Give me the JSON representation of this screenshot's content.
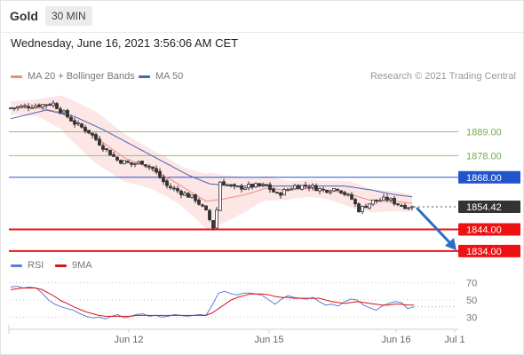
{
  "header": {
    "symbol": "Gold",
    "timeframe": "30 MIN",
    "datetime": "Wednesday, June 16, 2021 3:56:06 AM CET"
  },
  "legend": {
    "ma20_label": "MA 20 + Bollinger Bands",
    "ma50_label": "MA 50",
    "credit": "Research © 2021 Trading Central",
    "rsi_label": "RSI",
    "rsi_ma_label": "9MA"
  },
  "colors": {
    "ma20": "#f08a80",
    "ma50": "#4a64b4",
    "bands": "#fde3e3",
    "resistance": "#2255cc",
    "support": "#ee1111",
    "target": "#8fc46a",
    "rsi": "#5b7fd6",
    "rsi_ma": "#d91515",
    "arrow": "#2a6fc0",
    "up_candle": "#ffffff",
    "down_candle": "#333333"
  },
  "chart_data": [
    {
      "type": "candlestick",
      "title": "Gold",
      "subtitle": "30 MIN",
      "xlabel": "",
      "ylabel": "",
      "ylim": [
        1827,
        1917
      ],
      "x_ticks": [
        "Jun 12",
        "Jun 15",
        "Jun 16",
        "Jul 1"
      ],
      "levels": [
        {
          "label": "1889.00",
          "value": 1889.0,
          "kind": "target"
        },
        {
          "label": "1878.00",
          "value": 1878.0,
          "kind": "target"
        },
        {
          "label": "1868.00",
          "value": 1868.0,
          "kind": "resistance"
        },
        {
          "label": "1854.42",
          "value": 1854.42,
          "kind": "last"
        },
        {
          "label": "1844.00",
          "value": 1844.0,
          "kind": "support"
        },
        {
          "label": "1834.00",
          "value": 1834.0,
          "kind": "support"
        }
      ],
      "forecast_arrow": {
        "from": 1854.42,
        "to": 1836.0
      },
      "price_anchors": [
        [
          0,
          1900
        ],
        [
          6,
          1901
        ],
        [
          12,
          1902
        ],
        [
          14,
          1899
        ],
        [
          18,
          1893
        ],
        [
          22,
          1889
        ],
        [
          26,
          1882
        ],
        [
          30,
          1876
        ],
        [
          34,
          1874
        ],
        [
          37,
          1875
        ],
        [
          40,
          1872
        ],
        [
          44,
          1864
        ],
        [
          48,
          1861
        ],
        [
          52,
          1858
        ],
        [
          55,
          1852
        ],
        [
          57,
          1845
        ],
        [
          58,
          1853
        ],
        [
          59,
          1866
        ],
        [
          63,
          1863
        ],
        [
          68,
          1864
        ],
        [
          72,
          1864
        ],
        [
          75,
          1860
        ],
        [
          80,
          1864
        ],
        [
          84,
          1864
        ],
        [
          88,
          1862
        ],
        [
          92,
          1863
        ],
        [
          96,
          1858
        ],
        [
          98,
          1853
        ],
        [
          102,
          1857
        ],
        [
          106,
          1858
        ],
        [
          110,
          1855
        ],
        [
          113,
          1854.42
        ]
      ],
      "ma20_anchors": [
        [
          0,
          1900
        ],
        [
          8,
          1900
        ],
        [
          14,
          1898
        ],
        [
          20,
          1891
        ],
        [
          26,
          1884
        ],
        [
          32,
          1877
        ],
        [
          38,
          1873
        ],
        [
          44,
          1868
        ],
        [
          50,
          1862
        ],
        [
          55,
          1857
        ],
        [
          60,
          1858
        ],
        [
          66,
          1860
        ],
        [
          72,
          1863
        ],
        [
          78,
          1862
        ],
        [
          84,
          1863
        ],
        [
          90,
          1862
        ],
        [
          96,
          1860
        ],
        [
          102,
          1857
        ],
        [
          108,
          1857
        ],
        [
          113,
          1856
        ]
      ],
      "ma50_anchors": [
        [
          0,
          1895
        ],
        [
          10,
          1899
        ],
        [
          18,
          1896
        ],
        [
          26,
          1890
        ],
        [
          34,
          1883
        ],
        [
          42,
          1876
        ],
        [
          50,
          1869
        ],
        [
          56,
          1865
        ],
        [
          62,
          1864
        ],
        [
          70,
          1864
        ],
        [
          78,
          1864
        ],
        [
          86,
          1864
        ],
        [
          94,
          1864
        ],
        [
          102,
          1862
        ],
        [
          108,
          1860
        ],
        [
          113,
          1859
        ]
      ],
      "band_halfwidth_anchors": [
        [
          0,
          3
        ],
        [
          8,
          4
        ],
        [
          16,
          9
        ],
        [
          24,
          12
        ],
        [
          32,
          11
        ],
        [
          40,
          9
        ],
        [
          48,
          9
        ],
        [
          56,
          13
        ],
        [
          62,
          10
        ],
        [
          70,
          6
        ],
        [
          80,
          4
        ],
        [
          88,
          4
        ],
        [
          96,
          6
        ],
        [
          104,
          5
        ],
        [
          113,
          4
        ]
      ]
    },
    {
      "type": "line",
      "title": "RSI",
      "ylim": [
        20,
        80
      ],
      "y_ticks": [
        30,
        50,
        70
      ],
      "series": [
        {
          "name": "RSI",
          "values": [
            65,
            66,
            64,
            65,
            64,
            58,
            50,
            45,
            42,
            40,
            38,
            34,
            31,
            29,
            30,
            28,
            31,
            33,
            29,
            31,
            33,
            34,
            31,
            32,
            30,
            31,
            33,
            32,
            31,
            32,
            33,
            32,
            44,
            58,
            60,
            57,
            56,
            58,
            58,
            57,
            55,
            50,
            45,
            51,
            55,
            53,
            52,
            51,
            53,
            48,
            44,
            45,
            43,
            48,
            51,
            50,
            44,
            41,
            38,
            43,
            46,
            48,
            47,
            40,
            42
          ]
        },
        {
          "name": "9MA",
          "values": [
            62,
            63,
            64,
            64,
            64,
            62,
            58,
            54,
            49,
            46,
            42,
            39,
            36,
            34,
            32,
            31,
            31,
            31,
            31,
            31,
            32,
            32,
            32,
            32,
            32,
            32,
            32,
            32,
            32,
            32,
            32,
            32,
            35,
            40,
            45,
            50,
            53,
            55,
            57,
            57,
            57,
            56,
            54,
            53,
            53,
            52,
            52,
            52,
            52,
            52,
            50,
            48,
            47,
            46,
            47,
            48,
            47,
            46,
            45,
            44,
            44,
            45,
            45,
            44,
            44
          ]
        }
      ]
    }
  ]
}
